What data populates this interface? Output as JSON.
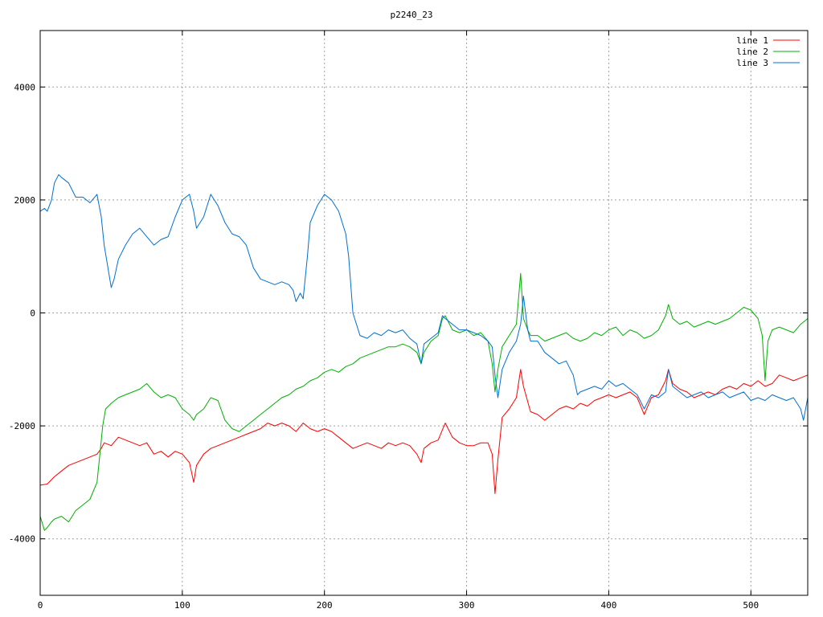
{
  "chart_data": {
    "type": "line",
    "title": "p2240_23",
    "xlim": [
      0,
      540
    ],
    "ylim": [
      -5000,
      5000
    ],
    "xticks": [
      0,
      100,
      200,
      300,
      400,
      500
    ],
    "yticks": [
      -4000,
      -2000,
      0,
      2000,
      4000
    ],
    "xtick_labels": [
      "0",
      "100",
      "200",
      "300",
      "400",
      "500"
    ],
    "ytick_labels": [
      "-4000",
      "-2000",
      "0",
      "2000",
      "4000"
    ],
    "grid": true,
    "legend_position": "top-right",
    "series": [
      {
        "name": "line 1",
        "color": "#ff0000",
        "x": [
          0,
          5,
          10,
          15,
          20,
          25,
          30,
          35,
          40,
          43,
          45,
          50,
          55,
          60,
          65,
          70,
          75,
          80,
          85,
          90,
          95,
          100,
          105,
          108,
          110,
          115,
          120,
          125,
          130,
          135,
          140,
          145,
          150,
          155,
          160,
          165,
          170,
          175,
          180,
          185,
          190,
          195,
          200,
          205,
          210,
          215,
          220,
          225,
          230,
          235,
          240,
          245,
          250,
          255,
          260,
          265,
          268,
          270,
          275,
          280,
          285,
          290,
          295,
          300,
          305,
          310,
          315,
          318,
          320,
          322,
          325,
          330,
          335,
          338,
          340,
          345,
          350,
          355,
          360,
          365,
          370,
          375,
          380,
          385,
          390,
          395,
          400,
          405,
          410,
          415,
          420,
          425,
          430,
          435,
          440,
          442,
          445,
          450,
          455,
          460,
          465,
          470,
          475,
          480,
          485,
          490,
          495,
          500,
          505,
          510,
          515,
          520,
          525,
          530,
          535,
          540
        ],
        "y": [
          -3050,
          -3030,
          -2900,
          -2800,
          -2700,
          -2650,
          -2600,
          -2550,
          -2500,
          -2400,
          -2300,
          -2350,
          -2200,
          -2250,
          -2300,
          -2350,
          -2300,
          -2500,
          -2450,
          -2550,
          -2450,
          -2500,
          -2650,
          -3000,
          -2700,
          -2500,
          -2400,
          -2350,
          -2300,
          -2250,
          -2200,
          -2150,
          -2100,
          -2050,
          -1950,
          -2000,
          -1950,
          -2000,
          -2100,
          -1950,
          -2050,
          -2100,
          -2050,
          -2100,
          -2200,
          -2300,
          -2400,
          -2350,
          -2300,
          -2350,
          -2400,
          -2300,
          -2350,
          -2300,
          -2350,
          -2500,
          -2650,
          -2400,
          -2300,
          -2250,
          -1950,
          -2200,
          -2300,
          -2350,
          -2350,
          -2300,
          -2300,
          -2500,
          -3200,
          -2600,
          -1850,
          -1700,
          -1500,
          -1000,
          -1300,
          -1750,
          -1800,
          -1900,
          -1800,
          -1700,
          -1650,
          -1700,
          -1600,
          -1650,
          -1550,
          -1500,
          -1450,
          -1500,
          -1450,
          -1400,
          -1500,
          -1800,
          -1500,
          -1450,
          -1200,
          -1000,
          -1250,
          -1350,
          -1400,
          -1500,
          -1450,
          -1400,
          -1450,
          -1350,
          -1300,
          -1350,
          -1250,
          -1300,
          -1200,
          -1300,
          -1250,
          -1100,
          -1150,
          -1200,
          -1150,
          -1100
        ]
      },
      {
        "name": "line 2",
        "color": "#00b000",
        "x": [
          0,
          3,
          5,
          8,
          10,
          15,
          20,
          25,
          30,
          35,
          40,
          42,
          44,
          46,
          50,
          55,
          60,
          65,
          70,
          75,
          80,
          85,
          90,
          95,
          100,
          105,
          108,
          110,
          115,
          120,
          125,
          130,
          135,
          140,
          145,
          150,
          155,
          160,
          165,
          170,
          175,
          180,
          185,
          190,
          195,
          200,
          205,
          210,
          215,
          220,
          225,
          230,
          235,
          240,
          245,
          250,
          255,
          260,
          265,
          268,
          270,
          275,
          280,
          283,
          285,
          290,
          295,
          300,
          305,
          310,
          315,
          318,
          320,
          322,
          325,
          330,
          335,
          338,
          340,
          343,
          345,
          350,
          355,
          360,
          365,
          370,
          375,
          380,
          385,
          390,
          395,
          400,
          405,
          410,
          415,
          420,
          425,
          430,
          435,
          440,
          442,
          445,
          450,
          455,
          460,
          465,
          470,
          475,
          480,
          485,
          490,
          495,
          500,
          505,
          508,
          510,
          512,
          515,
          520,
          525,
          530,
          535,
          540
        ],
        "y": [
          -3600,
          -3850,
          -3800,
          -3700,
          -3650,
          -3600,
          -3700,
          -3500,
          -3400,
          -3300,
          -3000,
          -2500,
          -2000,
          -1700,
          -1600,
          -1500,
          -1450,
          -1400,
          -1350,
          -1250,
          -1400,
          -1500,
          -1450,
          -1500,
          -1700,
          -1800,
          -1900,
          -1800,
          -1700,
          -1500,
          -1550,
          -1900,
          -2050,
          -2100,
          -2000,
          -1900,
          -1800,
          -1700,
          -1600,
          -1500,
          -1450,
          -1350,
          -1300,
          -1200,
          -1150,
          -1050,
          -1000,
          -1050,
          -950,
          -900,
          -800,
          -750,
          -700,
          -650,
          -600,
          -600,
          -550,
          -600,
          -700,
          -900,
          -700,
          -500,
          -400,
          -100,
          -50,
          -300,
          -350,
          -300,
          -400,
          -350,
          -500,
          -900,
          -1400,
          -1000,
          -600,
          -400,
          -200,
          700,
          -100,
          -300,
          -400,
          -400,
          -500,
          -450,
          -400,
          -350,
          -450,
          -500,
          -450,
          -350,
          -400,
          -300,
          -250,
          -400,
          -300,
          -350,
          -450,
          -400,
          -300,
          -50,
          150,
          -100,
          -200,
          -150,
          -250,
          -200,
          -150,
          -200,
          -150,
          -100,
          0,
          100,
          50,
          -100,
          -400,
          -1200,
          -500,
          -300,
          -250,
          -300,
          -350,
          -200,
          -100
        ]
      },
      {
        "name": "line 3",
        "color": "#0070d0",
        "x": [
          0,
          3,
          5,
          8,
          10,
          13,
          15,
          20,
          25,
          30,
          35,
          40,
          43,
          45,
          50,
          52,
          55,
          60,
          65,
          70,
          75,
          80,
          85,
          90,
          95,
          100,
          105,
          108,
          110,
          115,
          120,
          125,
          130,
          135,
          140,
          145,
          150,
          155,
          160,
          165,
          170,
          175,
          178,
          180,
          183,
          185,
          188,
          190,
          195,
          200,
          205,
          210,
          215,
          217,
          220,
          225,
          230,
          235,
          240,
          245,
          250,
          255,
          260,
          265,
          268,
          270,
          275,
          280,
          283,
          285,
          290,
          295,
          300,
          305,
          310,
          315,
          318,
          320,
          322,
          325,
          330,
          335,
          338,
          340,
          343,
          345,
          350,
          355,
          360,
          365,
          370,
          375,
          378,
          380,
          385,
          390,
          395,
          400,
          405,
          410,
          415,
          420,
          425,
          430,
          435,
          440,
          442,
          445,
          450,
          455,
          460,
          465,
          470,
          475,
          480,
          485,
          490,
          495,
          500,
          505,
          510,
          515,
          520,
          525,
          530,
          535,
          537,
          540
        ],
        "y": [
          1800,
          1850,
          1800,
          2000,
          2300,
          2450,
          2400,
          2300,
          2050,
          2050,
          1950,
          2100,
          1700,
          1200,
          450,
          600,
          950,
          1200,
          1400,
          1500,
          1350,
          1200,
          1300,
          1350,
          1700,
          2000,
          2100,
          1800,
          1500,
          1700,
          2100,
          1900,
          1600,
          1400,
          1350,
          1200,
          800,
          600,
          550,
          500,
          550,
          500,
          400,
          200,
          350,
          250,
          1000,
          1600,
          1900,
          2100,
          2000,
          1800,
          1400,
          1000,
          0,
          -400,
          -450,
          -350,
          -400,
          -300,
          -350,
          -300,
          -450,
          -550,
          -900,
          -550,
          -450,
          -350,
          -50,
          -100,
          -200,
          -300,
          -300,
          -350,
          -400,
          -500,
          -600,
          -1100,
          -1500,
          -1000,
          -700,
          -500,
          -200,
          300,
          -300,
          -500,
          -500,
          -700,
          -800,
          -900,
          -850,
          -1100,
          -1450,
          -1400,
          -1350,
          -1300,
          -1350,
          -1200,
          -1300,
          -1250,
          -1350,
          -1450,
          -1700,
          -1450,
          -1500,
          -1400,
          -1000,
          -1300,
          -1400,
          -1500,
          -1450,
          -1400,
          -1500,
          -1450,
          -1400,
          -1500,
          -1450,
          -1400,
          -1550,
          -1500,
          -1550,
          -1450,
          -1500,
          -1550,
          -1500,
          -1700,
          -1900,
          -1500
        ]
      }
    ]
  }
}
